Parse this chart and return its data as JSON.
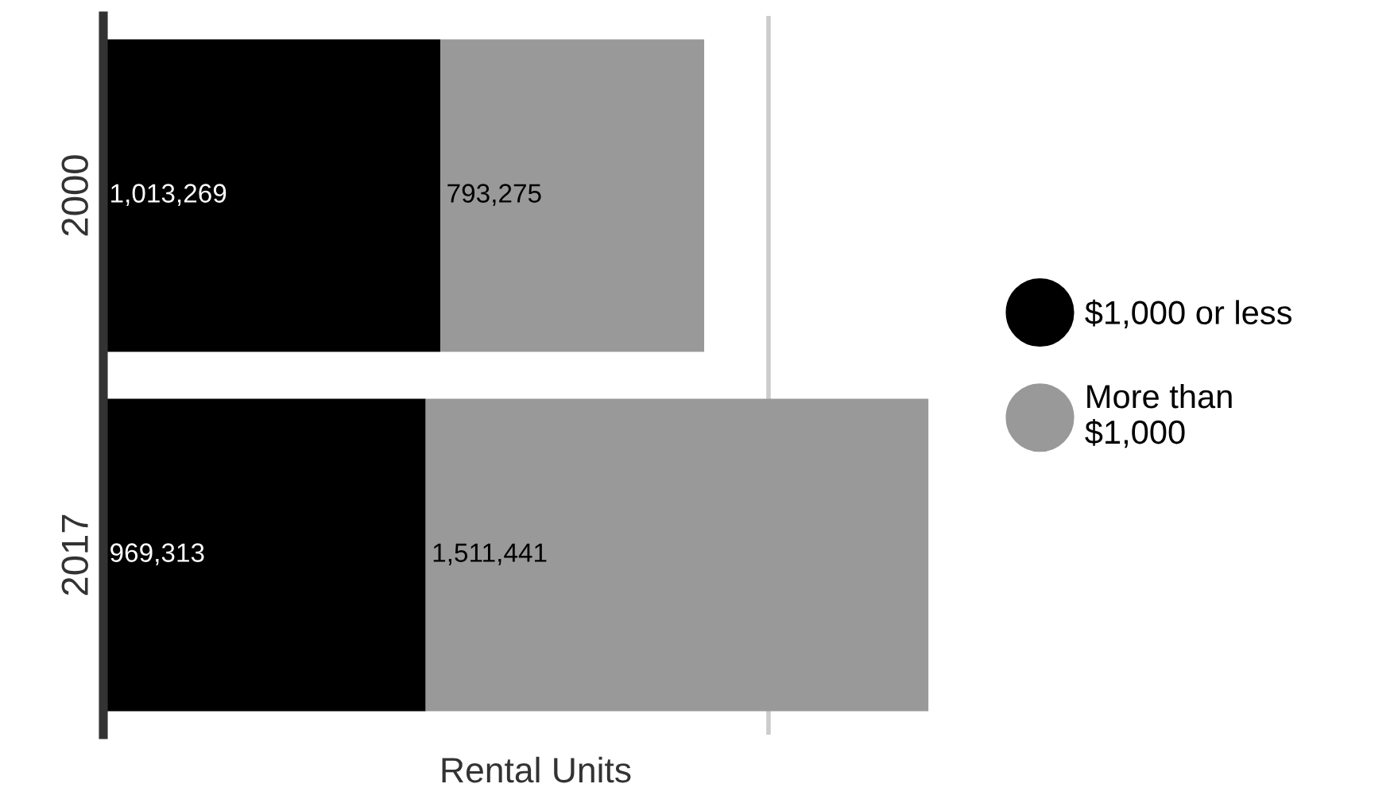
{
  "chart_data": {
    "type": "bar",
    "orientation": "horizontal",
    "stacked": true,
    "categories": [
      "2000",
      "2017"
    ],
    "series": [
      {
        "name": "$1,000 or less",
        "color": "#000000",
        "values": [
          1013269,
          969313
        ],
        "value_labels": [
          "1,013,269",
          "969,313"
        ]
      },
      {
        "name": "More than\n$1,000",
        "color": "#999999",
        "values": [
          793275,
          1511441
        ],
        "value_labels": [
          "793,275",
          "1,511,441"
        ]
      }
    ],
    "xlabel": "Rental Units",
    "ref_lines": [
      {
        "axis": "x",
        "value": 2000000,
        "color": "#cccccc"
      }
    ],
    "legend": "right",
    "tick_labels": "y"
  }
}
